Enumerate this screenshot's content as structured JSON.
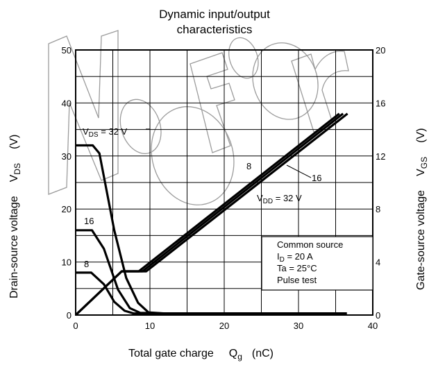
{
  "chart_data": {
    "type": "line",
    "title_lines": [
      "Dynamic input/output",
      "characteristics"
    ],
    "xlabel": {
      "main": "Total gate charge",
      "sym": "Q",
      "sub": "g",
      "unit": "(nC)"
    },
    "ylabel_left": {
      "main": "Drain-source voltage",
      "sym": "V",
      "sub": "DS",
      "unit": "(V)"
    },
    "ylabel_right": {
      "main": "Gate-source voltage",
      "sym": "V",
      "sub": "GS",
      "unit": "(V)"
    },
    "xlim": [
      0,
      40
    ],
    "ylim_left": [
      0,
      50
    ],
    "ylim_right": [
      0,
      20
    ],
    "x_ticks": [
      "0",
      "10",
      "20",
      "30",
      "40"
    ],
    "y_left_ticks": [
      "0",
      "10",
      "20",
      "30",
      "40",
      "50"
    ],
    "y_right_ticks": [
      "0",
      "4",
      "8",
      "12",
      "16",
      "20"
    ],
    "grid": true,
    "vds_series": [
      {
        "label_main": "V",
        "label_sub": "DS",
        "label_rest": " = 32 V",
        "points": [
          [
            0,
            32
          ],
          [
            2.3,
            32
          ],
          [
            3.2,
            30.5
          ],
          [
            5.2,
            16
          ],
          [
            6.8,
            7
          ],
          [
            8.4,
            2.3
          ],
          [
            9.8,
            0.5
          ],
          [
            12,
            0.3
          ],
          [
            36.5,
            0.3
          ]
        ]
      },
      {
        "label": "16",
        "points": [
          [
            0,
            16
          ],
          [
            2.2,
            16
          ],
          [
            3.8,
            12.5
          ],
          [
            5.7,
            4.8
          ],
          [
            7.3,
            1.3
          ],
          [
            8.7,
            0.4
          ],
          [
            12,
            0.3
          ],
          [
            36.5,
            0.3
          ]
        ]
      },
      {
        "label": "8",
        "points": [
          [
            0,
            8
          ],
          [
            2.1,
            8
          ],
          [
            3.8,
            5.8
          ],
          [
            5.2,
            2.5
          ],
          [
            6.6,
            0.8
          ],
          [
            7.8,
            0.3
          ],
          [
            12,
            0.3
          ],
          [
            36.5,
            0.3
          ]
        ]
      }
    ],
    "vgs_series": [
      {
        "label": "8",
        "points": [
          [
            0,
            0
          ],
          [
            6.2,
            3.3
          ],
          [
            8.5,
            3.3
          ],
          [
            35.5,
            15.2
          ]
        ]
      },
      {
        "label": "16",
        "points": [
          [
            0,
            0
          ],
          [
            6.2,
            3.3
          ],
          [
            9.0,
            3.3
          ],
          [
            36.0,
            15.2
          ]
        ]
      },
      {
        "label_main": "V",
        "label_sub": "DD",
        "label_rest": " = 32 V",
        "points": [
          [
            0,
            0
          ],
          [
            6.2,
            3.3
          ],
          [
            9.5,
            3.3
          ],
          [
            36.6,
            15.2
          ]
        ]
      }
    ],
    "legend_box": {
      "line1": "Common source",
      "line2_main": "I",
      "line2_sub": "D",
      "line2_rest": " = 20 A",
      "line3": "Ta = 25°C",
      "line4": "Pulse test"
    },
    "legend_placement": "lower-right"
  }
}
